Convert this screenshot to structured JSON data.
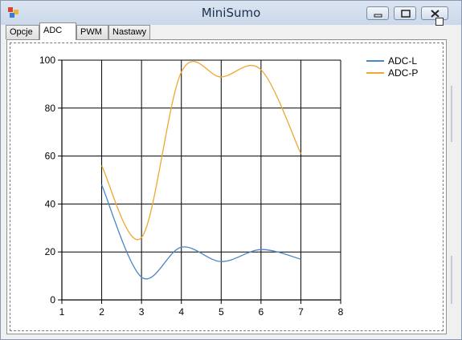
{
  "window": {
    "title": "MiniSumo"
  },
  "tabs": [
    {
      "label": "Opcje",
      "active": false
    },
    {
      "label": "ADC",
      "active": true
    },
    {
      "label": "PWM",
      "active": false
    },
    {
      "label": "Nastawy",
      "active": false
    }
  ],
  "chart_data": {
    "type": "line",
    "xlim": [
      1,
      8
    ],
    "ylim": [
      0,
      100
    ],
    "xticks": [
      "1",
      "2",
      "3",
      "4",
      "5",
      "6",
      "7",
      "8"
    ],
    "yticks": [
      "0",
      "20",
      "40",
      "60",
      "80",
      "100"
    ],
    "grid": true,
    "legend_position": "top-right",
    "series": [
      {
        "name": "ADC-L",
        "color": "#4a86c8",
        "x": [
          2,
          3,
          4,
          5,
          6,
          7
        ],
        "y": [
          48,
          9.5,
          22,
          16,
          21,
          17
        ]
      },
      {
        "name": "ADC-P",
        "color": "#f0a830",
        "x": [
          2,
          3,
          4,
          5,
          6,
          7
        ],
        "y": [
          56,
          26,
          95,
          93,
          96,
          61
        ]
      }
    ]
  }
}
